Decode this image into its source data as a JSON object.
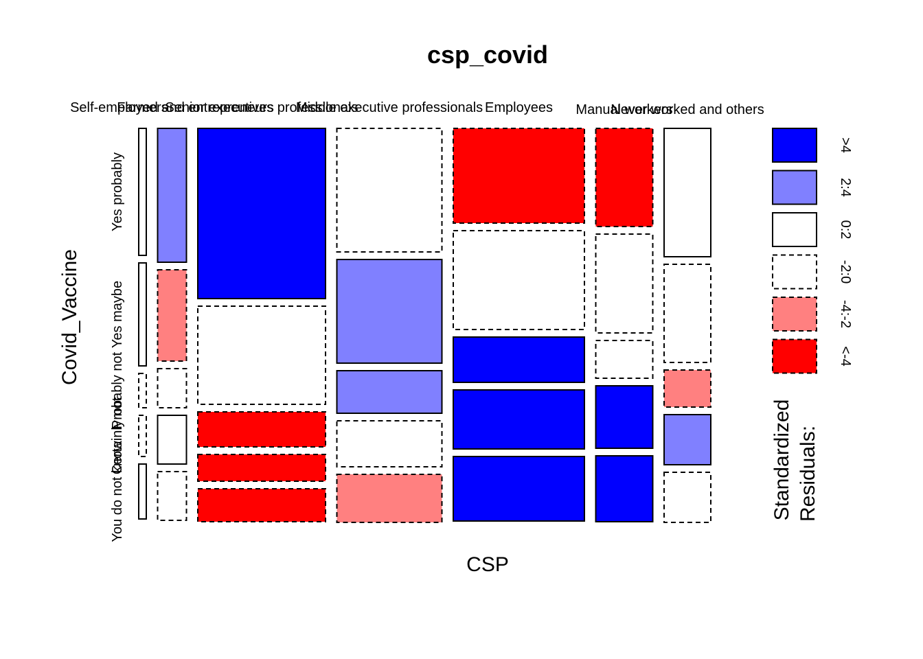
{
  "chart_data": {
    "type": "mosaic",
    "title": "csp_covid",
    "xlabel": "CSP",
    "ylabel": "Covid_Vaccine",
    "columns": [
      "Farmers",
      "Self-employed and entrepreneurs",
      "Senior executives professionals",
      "Middle executive professionals",
      "Employees",
      "Manual workers",
      "Never worked and others"
    ],
    "column_widths": [
      11,
      42,
      186,
      153,
      191,
      83,
      68
    ],
    "rows": [
      "Yes probably",
      "Yes maybe",
      "Probably not",
      "Certainly not",
      "You do not know"
    ],
    "cells": [
      [
        {
          "h": 185,
          "r": "0:2"
        },
        {
          "h": 150,
          "r": "0:2"
        },
        {
          "h": 50,
          "r": "-2:0"
        },
        {
          "h": 60,
          "r": "-2:0"
        },
        {
          "h": 80,
          "r": "0:2"
        }
      ],
      [
        {
          "h": 195,
          "r": "2:4"
        },
        {
          "h": 133,
          "r": "-4:-2"
        },
        {
          "h": 57,
          "r": "-2:0"
        },
        {
          "h": 71,
          "r": "0:2"
        },
        {
          "h": 71,
          "r": "-2:0"
        }
      ],
      [
        {
          "h": 248,
          "r": ">4"
        },
        {
          "h": 143,
          "r": "-2:0"
        },
        {
          "h": 51,
          "r": "<-4"
        },
        {
          "h": 39,
          "r": "<-4"
        },
        {
          "h": 48,
          "r": "<-4"
        }
      ],
      [
        {
          "h": 180,
          "r": "-2:0"
        },
        {
          "h": 151,
          "r": "2:4"
        },
        {
          "h": 62,
          "r": "2:4"
        },
        {
          "h": 67,
          "r": "-2:0"
        },
        {
          "h": 70,
          "r": "-4:-2"
        }
      ],
      [
        {
          "h": 138,
          "r": "<-4"
        },
        {
          "h": 144,
          "r": "-2:0"
        },
        {
          "h": 66,
          "r": ">4"
        },
        {
          "h": 86,
          "r": ">4"
        },
        {
          "h": 94,
          "r": ">4"
        }
      ],
      [
        {
          "h": 143,
          "r": "<-4"
        },
        {
          "h": 144,
          "r": "-2:0"
        },
        {
          "h": 55,
          "r": "-2:0"
        },
        {
          "h": 91,
          "r": ">4"
        },
        {
          "h": 96,
          "r": ">4"
        }
      ],
      [
        {
          "h": 187,
          "r": "0:2"
        },
        {
          "h": 143,
          "r": "-2:0"
        },
        {
          "h": 54,
          "r": "-4:-2"
        },
        {
          "h": 73,
          "r": "2:4"
        },
        {
          "h": 73,
          "r": "-2:0"
        }
      ]
    ],
    "legend": {
      "title_line1": "Standardized",
      "title_line2": "Residuals:",
      "placement": "right",
      "entries": [
        {
          "label": ">4",
          "fill": "#0000ff",
          "dashed": false
        },
        {
          "label": "2:4",
          "fill": "#8080ff",
          "dashed": false
        },
        {
          "label": "0:2",
          "fill": "#ffffff",
          "dashed": false
        },
        {
          "label": "-2:0",
          "fill": "#ffffff",
          "dashed": true
        },
        {
          "label": "-4:-2",
          "fill": "#ff8080",
          "dashed": true
        },
        {
          "label": "<-4",
          "fill": "#ff0000",
          "dashed": true
        }
      ]
    }
  }
}
